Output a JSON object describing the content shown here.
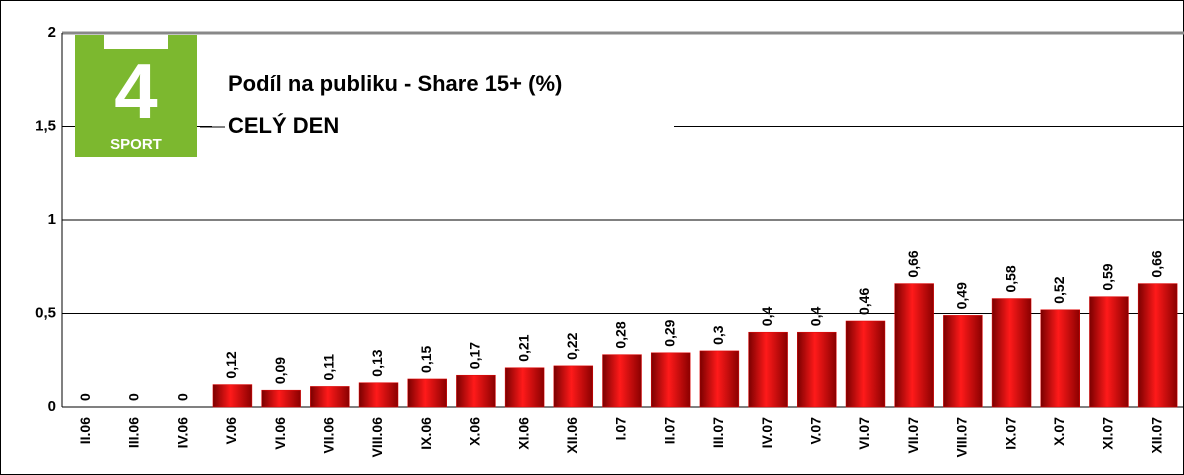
{
  "chart_data": {
    "type": "bar",
    "title": "Podíl na publiku - Share 15+ (%)",
    "subtitle": "CELÝ DEN",
    "logo": {
      "number": "4",
      "text": "SPORT"
    },
    "categories": [
      "II.06",
      "III.06",
      "IV.06",
      "V.06",
      "VI.06",
      "VII.06",
      "VIII.06",
      "IX.06",
      "X.06",
      "XI.06",
      "XII.06",
      "I.07",
      "II.07",
      "III.07",
      "IV.07",
      "V.07",
      "VI.07",
      "VII.07",
      "VIII.07",
      "IX.07",
      "X.07",
      "XI.07",
      "XII.07"
    ],
    "values": [
      0,
      0,
      0,
      0.12,
      0.09,
      0.11,
      0.13,
      0.15,
      0.17,
      0.21,
      0.22,
      0.28,
      0.29,
      0.3,
      0.4,
      0.4,
      0.46,
      0.66,
      0.49,
      0.58,
      0.52,
      0.59,
      0.66
    ],
    "value_labels": [
      "0",
      "0",
      "0",
      "0,12",
      "0,09",
      "0,11",
      "0,13",
      "0,15",
      "0,17",
      "0,21",
      "0,22",
      "0,28",
      "0,29",
      "0,3",
      "0,4",
      "0,4",
      "0,46",
      "0,66",
      "0,49",
      "0,58",
      "0,52",
      "0,59",
      "0,66"
    ],
    "color": "#e00000",
    "ylim": [
      0,
      2
    ],
    "yticks": [
      0,
      {
        "value": 0.5,
        "label": "0,5"
      },
      1,
      {
        "value": 1.5,
        "label": "1,5"
      },
      2
    ],
    "grid": true
  }
}
